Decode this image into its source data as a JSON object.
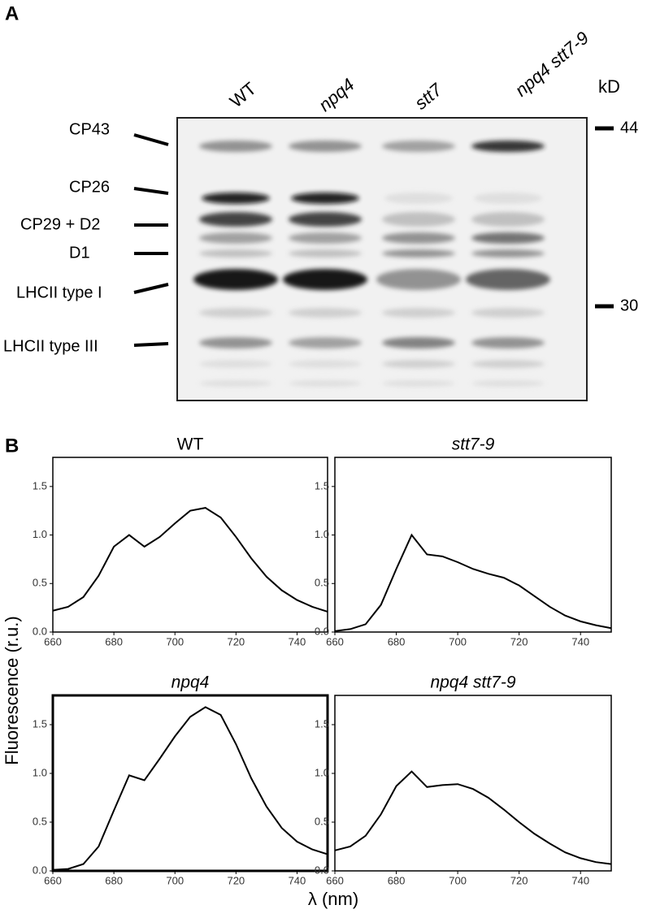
{
  "panel_a": {
    "label": "A",
    "lanes": [
      "WT",
      "npq4",
      "stt7",
      "npq4 stt7-9"
    ],
    "unit": "kD",
    "markers": [
      "44",
      "30"
    ],
    "bands": [
      "CP43",
      "CP26",
      "CP29 + D2",
      "D1",
      "LHCII type I",
      "LHCII type III"
    ]
  },
  "panel_b": {
    "label": "B",
    "ylabel": "Fluorescence (r.u.)",
    "xlabel": "λ (nm)"
  },
  "chart_data": [
    {
      "type": "line",
      "title": "WT",
      "x": [
        660,
        665,
        670,
        675,
        680,
        685,
        690,
        695,
        700,
        705,
        710,
        715,
        720,
        725,
        730,
        735,
        740,
        745,
        750
      ],
      "series": [
        {
          "color": "#000000",
          "values": [
            0.22,
            0.26,
            0.36,
            0.58,
            0.88,
            1.0,
            0.88,
            0.98,
            1.12,
            1.25,
            1.28,
            1.18,
            0.98,
            0.76,
            0.57,
            0.43,
            0.33,
            0.26,
            0.21
          ]
        }
      ],
      "xlim": [
        660,
        750
      ],
      "ylim": [
        0,
        1.8
      ],
      "xticks": [
        660,
        680,
        700,
        720,
        740
      ],
      "yticks": [
        {
          "value": 0,
          "label": "0.0"
        },
        0.5,
        {
          "value": 1,
          "label": "1.0"
        },
        1.5
      ]
    },
    {
      "type": "line",
      "title": "stt7-9",
      "x": [
        660,
        665,
        670,
        675,
        680,
        685,
        690,
        695,
        700,
        705,
        710,
        715,
        720,
        725,
        730,
        735,
        740,
        745,
        750
      ],
      "series": [
        {
          "color": "#000000",
          "values": [
            0.01,
            0.03,
            0.08,
            0.28,
            0.65,
            1.0,
            0.8,
            0.78,
            0.72,
            0.65,
            0.6,
            0.56,
            0.48,
            0.37,
            0.26,
            0.17,
            0.11,
            0.07,
            0.04
          ]
        }
      ],
      "xlim": [
        660,
        750
      ],
      "ylim": [
        0,
        1.8
      ],
      "xticks": [
        660,
        680,
        700,
        720,
        740
      ],
      "yticks": [
        {
          "value": 0,
          "label": "0.0"
        },
        0.5,
        {
          "value": 1,
          "label": "1.0"
        },
        1.5
      ]
    },
    {
      "type": "line",
      "title": "npq4",
      "x": [
        660,
        665,
        670,
        675,
        680,
        685,
        690,
        695,
        700,
        705,
        710,
        715,
        720,
        725,
        730,
        735,
        740,
        745,
        750
      ],
      "series": [
        {
          "color": "#000000",
          "values": [
            0.01,
            0.02,
            0.07,
            0.25,
            0.62,
            0.98,
            0.93,
            1.15,
            1.38,
            1.58,
            1.68,
            1.6,
            1.3,
            0.95,
            0.66,
            0.44,
            0.3,
            0.22,
            0.17
          ]
        }
      ],
      "xlim": [
        660,
        750
      ],
      "ylim": [
        0,
        1.8
      ],
      "xticks": [
        660,
        680,
        700,
        720,
        740
      ],
      "yticks": [
        {
          "value": 0,
          "label": "0.0"
        },
        0.5,
        {
          "value": 1,
          "label": "1.0"
        },
        1.5
      ]
    },
    {
      "type": "line",
      "title": "npq4 stt7-9",
      "x": [
        660,
        665,
        670,
        675,
        680,
        685,
        690,
        695,
        700,
        705,
        710,
        715,
        720,
        725,
        730,
        735,
        740,
        745,
        750
      ],
      "series": [
        {
          "color": "#000000",
          "values": [
            0.21,
            0.25,
            0.36,
            0.58,
            0.87,
            1.02,
            0.86,
            0.88,
            0.89,
            0.84,
            0.75,
            0.63,
            0.5,
            0.38,
            0.28,
            0.19,
            0.13,
            0.09,
            0.07
          ]
        }
      ],
      "xlim": [
        660,
        750
      ],
      "ylim": [
        0,
        1.8
      ],
      "xticks": [
        660,
        680,
        700,
        720,
        740
      ],
      "yticks": [
        {
          "value": 0,
          "label": "0.0"
        },
        0.5,
        {
          "value": 1,
          "label": "1.0"
        },
        1.5
      ]
    }
  ]
}
